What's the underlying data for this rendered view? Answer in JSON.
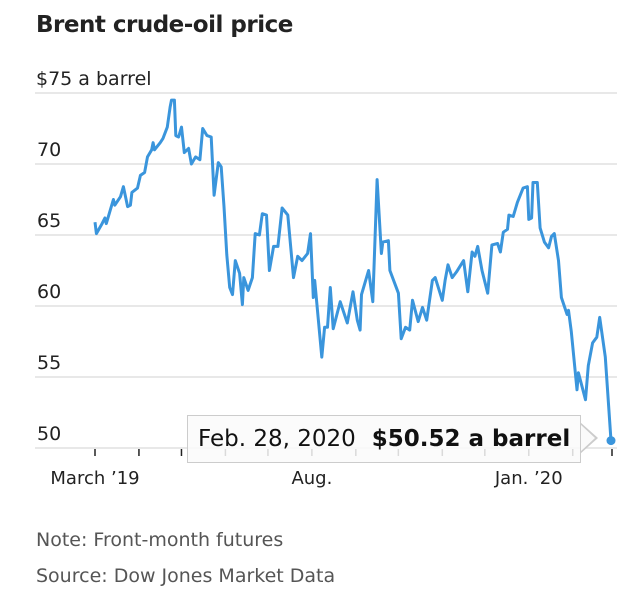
{
  "chart_data": {
    "type": "line",
    "title": "Brent crude-oil price",
    "y_unit_label": "$75 a barrel",
    "ylim": [
      50,
      75
    ],
    "yticks": [
      75,
      70,
      65,
      60,
      55,
      50
    ],
    "ytick_labels": [
      "$75 a barrel",
      "70",
      "65",
      "60",
      "55",
      "50"
    ],
    "xlim": [
      "2019-03-01",
      "2020-02-28"
    ],
    "xtick_labels": [
      {
        "date": "2019-03-01",
        "label": "March ’19"
      },
      {
        "date": "2019-08-01",
        "label": "Aug."
      },
      {
        "date": "2020-01-01",
        "label": "Jan. ’20"
      }
    ],
    "grid": true,
    "color": "#3a95dc",
    "series": [
      {
        "points": [
          [
            "2019-03-01",
            65.9
          ],
          [
            "2019-03-02",
            65.1
          ],
          [
            "2019-03-06",
            65.8
          ],
          [
            "2019-03-08",
            66.2
          ],
          [
            "2019-03-09",
            65.8
          ],
          [
            "2019-03-14",
            67.5
          ],
          [
            "2019-03-15",
            67.1
          ],
          [
            "2019-03-19",
            67.7
          ],
          [
            "2019-03-21",
            68.4
          ],
          [
            "2019-03-24",
            67.0
          ],
          [
            "2019-03-26",
            67.1
          ],
          [
            "2019-03-27",
            68.0
          ],
          [
            "2019-03-31",
            68.3
          ],
          [
            "2019-04-02",
            69.2
          ],
          [
            "2019-04-05",
            69.4
          ],
          [
            "2019-04-07",
            70.5
          ],
          [
            "2019-04-10",
            71.0
          ],
          [
            "2019-04-11",
            71.5
          ],
          [
            "2019-04-12",
            71.0
          ],
          [
            "2019-04-16",
            71.5
          ],
          [
            "2019-04-18",
            71.8
          ],
          [
            "2019-04-21",
            72.6
          ],
          [
            "2019-04-23",
            74.0
          ],
          [
            "2019-04-24",
            74.5
          ],
          [
            "2019-04-26",
            74.5
          ],
          [
            "2019-04-27",
            72.0
          ],
          [
            "2019-04-29",
            71.9
          ],
          [
            "2019-05-01",
            72.6
          ],
          [
            "2019-05-03",
            70.8
          ],
          [
            "2019-05-06",
            71.1
          ],
          [
            "2019-05-08",
            70.0
          ],
          [
            "2019-05-11",
            70.5
          ],
          [
            "2019-05-14",
            70.3
          ],
          [
            "2019-05-16",
            72.5
          ],
          [
            "2019-05-19",
            72.0
          ],
          [
            "2019-05-22",
            71.9
          ],
          [
            "2019-05-24",
            67.8
          ],
          [
            "2019-05-27",
            70.1
          ],
          [
            "2019-05-29",
            69.8
          ],
          [
            "2019-05-31",
            67.0
          ],
          [
            "2019-06-02",
            63.6
          ],
          [
            "2019-06-04",
            61.3
          ],
          [
            "2019-06-06",
            60.8
          ],
          [
            "2019-06-08",
            63.2
          ],
          [
            "2019-06-11",
            62.3
          ],
          [
            "2019-06-13",
            60.1
          ],
          [
            "2019-06-14",
            62.0
          ],
          [
            "2019-06-17",
            61.1
          ],
          [
            "2019-06-20",
            62.0
          ],
          [
            "2019-06-22",
            65.1
          ],
          [
            "2019-06-25",
            65.0
          ],
          [
            "2019-06-27",
            66.5
          ],
          [
            "2019-06-30",
            66.4
          ],
          [
            "2019-07-02",
            62.5
          ],
          [
            "2019-07-05",
            64.2
          ],
          [
            "2019-07-08",
            64.2
          ],
          [
            "2019-07-11",
            66.9
          ],
          [
            "2019-07-15",
            66.4
          ],
          [
            "2019-07-19",
            62.0
          ],
          [
            "2019-07-22",
            63.5
          ],
          [
            "2019-07-25",
            63.2
          ],
          [
            "2019-07-29",
            63.7
          ],
          [
            "2019-07-31",
            65.1
          ],
          [
            "2019-08-02",
            60.6
          ],
          [
            "2019-08-03",
            61.8
          ],
          [
            "2019-08-08",
            56.4
          ],
          [
            "2019-08-10",
            58.5
          ],
          [
            "2019-08-12",
            58.5
          ],
          [
            "2019-08-14",
            61.3
          ],
          [
            "2019-08-16",
            58.4
          ],
          [
            "2019-08-21",
            60.3
          ],
          [
            "2019-08-26",
            58.8
          ],
          [
            "2019-08-30",
            61.0
          ],
          [
            "2019-09-02",
            59.0
          ],
          [
            "2019-09-04",
            58.3
          ],
          [
            "2019-09-05",
            60.8
          ],
          [
            "2019-09-10",
            62.5
          ],
          [
            "2019-09-13",
            60.3
          ],
          [
            "2019-09-16",
            68.9
          ],
          [
            "2019-09-19",
            63.7
          ],
          [
            "2019-09-20",
            64.5
          ],
          [
            "2019-09-24",
            64.6
          ],
          [
            "2019-09-25",
            62.5
          ],
          [
            "2019-10-01",
            60.9
          ],
          [
            "2019-10-03",
            57.7
          ],
          [
            "2019-10-06",
            58.5
          ],
          [
            "2019-10-09",
            58.3
          ],
          [
            "2019-10-11",
            60.4
          ],
          [
            "2019-10-15",
            58.9
          ],
          [
            "2019-10-18",
            59.9
          ],
          [
            "2019-10-21",
            59.0
          ],
          [
            "2019-10-25",
            61.8
          ],
          [
            "2019-10-27",
            62.0
          ],
          [
            "2019-11-01",
            60.4
          ],
          [
            "2019-11-03",
            61.8
          ],
          [
            "2019-11-05",
            62.9
          ],
          [
            "2019-11-08",
            62.0
          ],
          [
            "2019-11-11",
            62.4
          ],
          [
            "2019-11-16",
            63.2
          ],
          [
            "2019-11-19",
            61.0
          ],
          [
            "2019-11-22",
            63.8
          ],
          [
            "2019-11-24",
            63.5
          ],
          [
            "2019-11-26",
            64.2
          ],
          [
            "2019-11-29",
            62.5
          ],
          [
            "2019-12-03",
            60.9
          ],
          [
            "2019-12-06",
            64.3
          ],
          [
            "2019-12-10",
            64.4
          ],
          [
            "2019-12-12",
            63.8
          ],
          [
            "2019-12-14",
            65.2
          ],
          [
            "2019-12-17",
            65.4
          ],
          [
            "2019-12-18",
            66.4
          ],
          [
            "2019-12-21",
            66.3
          ],
          [
            "2019-12-24",
            67.3
          ],
          [
            "2019-12-28",
            68.3
          ],
          [
            "2019-12-31",
            68.4
          ],
          [
            "2020-01-01",
            66.1
          ],
          [
            "2020-01-03",
            66.2
          ],
          [
            "2020-01-04",
            68.7
          ],
          [
            "2020-01-07",
            68.7
          ],
          [
            "2020-01-09",
            65.5
          ],
          [
            "2020-01-12",
            64.5
          ],
          [
            "2020-01-15",
            64.1
          ],
          [
            "2020-01-17",
            64.9
          ],
          [
            "2020-01-19",
            65.1
          ],
          [
            "2020-01-22",
            63.2
          ],
          [
            "2020-01-24",
            60.6
          ],
          [
            "2020-01-28",
            59.4
          ],
          [
            "2020-01-29",
            59.7
          ],
          [
            "2020-01-31",
            58.2
          ],
          [
            "2020-02-04",
            54.1
          ],
          [
            "2020-02-05",
            55.3
          ],
          [
            "2020-02-10",
            53.4
          ],
          [
            "2020-02-12",
            55.8
          ],
          [
            "2020-02-15",
            57.4
          ],
          [
            "2020-02-18",
            57.8
          ],
          [
            "2020-02-20",
            59.2
          ],
          [
            "2020-02-24",
            56.4
          ],
          [
            "2020-02-28",
            50.52
          ]
        ]
      }
    ],
    "annotation": {
      "date_label": "Feb. 28, 2020",
      "value_label": "$50.52 a barrel"
    }
  },
  "footer": {
    "note": "Note: Front-month futures",
    "source": "Source: Dow Jones Market Data"
  }
}
